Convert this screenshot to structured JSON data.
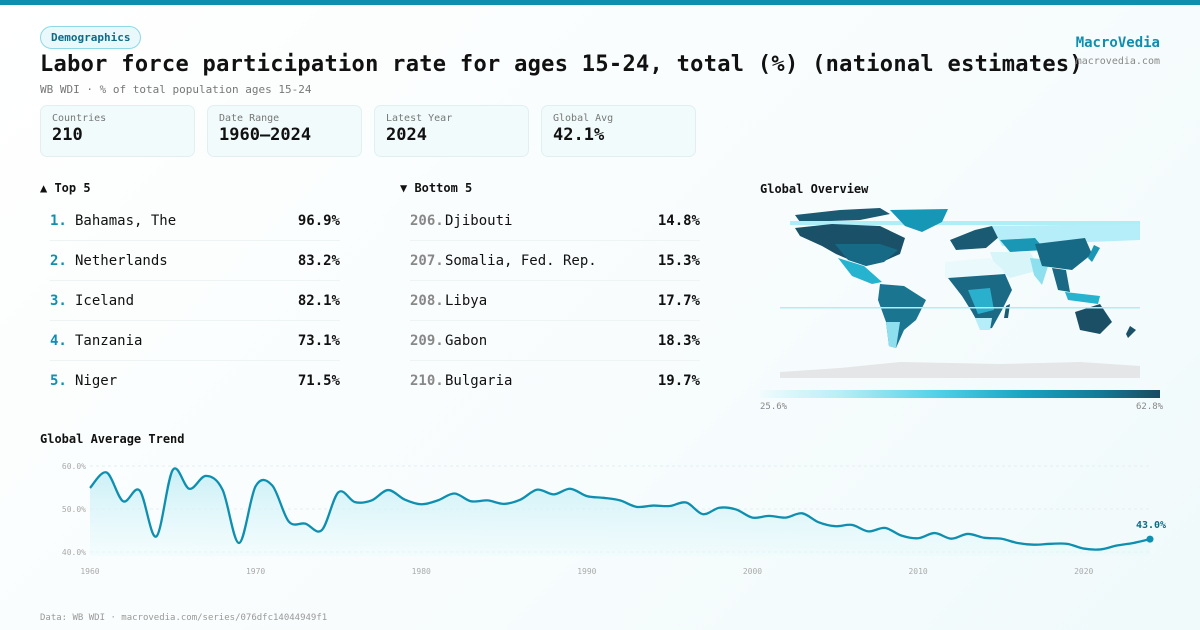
{
  "header": {
    "category": "Demographics",
    "title": "Labor force participation rate for ages 15-24, total (%) (national estimates)",
    "subtitle": "WB WDI · % of total population ages 15-24",
    "brand": "MacroVedia",
    "brand_url": "macrovedia.com"
  },
  "stats": [
    {
      "label": "Countries",
      "value": "210"
    },
    {
      "label": "Date Range",
      "value": "1960–2024"
    },
    {
      "label": "Latest Year",
      "value": "2024"
    },
    {
      "label": "Global Avg",
      "value": "42.1%"
    }
  ],
  "top": {
    "heading": "▲ Top 5",
    "items": [
      {
        "rank": "1.",
        "name": "Bahamas, The",
        "value": "96.9%"
      },
      {
        "rank": "2.",
        "name": "Netherlands",
        "value": "83.2%"
      },
      {
        "rank": "3.",
        "name": "Iceland",
        "value": "82.1%"
      },
      {
        "rank": "4.",
        "name": "Tanzania",
        "value": "73.1%"
      },
      {
        "rank": "5.",
        "name": "Niger",
        "value": "71.5%"
      }
    ]
  },
  "bottom": {
    "heading": "▼ Bottom 5",
    "items": [
      {
        "rank": "206.",
        "name": "Djibouti",
        "value": "14.8%"
      },
      {
        "rank": "207.",
        "name": "Somalia, Fed. Rep.",
        "value": "15.3%"
      },
      {
        "rank": "208.",
        "name": "Libya",
        "value": "17.7%"
      },
      {
        "rank": "209.",
        "name": "Gabon",
        "value": "18.3%"
      },
      {
        "rank": "210.",
        "name": "Bulgaria",
        "value": "19.7%"
      }
    ]
  },
  "map": {
    "heading": "Global Overview",
    "legend_min": "25.6%",
    "legend_max": "62.8%",
    "colors": {
      "low": "#f0fbfd",
      "high": "#1a4a5f",
      "no_data": "#e4e6e8"
    }
  },
  "chart_data": {
    "type": "area",
    "title": "Global Average Trend",
    "x": [
      1960,
      1961,
      1962,
      1963,
      1964,
      1965,
      1966,
      1967,
      1968,
      1969,
      1970,
      1971,
      1972,
      1973,
      1974,
      1975,
      1976,
      1977,
      1978,
      1979,
      1980,
      1981,
      1982,
      1983,
      1984,
      1985,
      1986,
      1987,
      1988,
      1989,
      1990,
      1991,
      1992,
      1993,
      1994,
      1995,
      1996,
      1997,
      1998,
      1999,
      2000,
      2001,
      2002,
      2003,
      2004,
      2005,
      2006,
      2007,
      2008,
      2009,
      2010,
      2011,
      2012,
      2013,
      2014,
      2015,
      2016,
      2017,
      2018,
      2019,
      2020,
      2021,
      2022,
      2023,
      2024
    ],
    "values": [
      54.9,
      58.5,
      51.8,
      54.3,
      43.6,
      59.1,
      54.7,
      57.7,
      54.5,
      42.1,
      55.3,
      55.5,
      47.1,
      46.6,
      45.1,
      53.9,
      51.6,
      52.0,
      54.4,
      52.2,
      51.1,
      52.0,
      53.6,
      51.8,
      52.0,
      51.2,
      52.2,
      54.5,
      53.4,
      54.7,
      53.0,
      52.6,
      52.0,
      50.5,
      50.8,
      50.7,
      51.5,
      48.8,
      50.3,
      49.9,
      48.0,
      48.4,
      48.0,
      49.0,
      46.9,
      46.0,
      46.3,
      44.8,
      45.6,
      43.8,
      43.2,
      44.4,
      43.1,
      44.2,
      43.3,
      43.1,
      42.1,
      41.7,
      41.9,
      41.9,
      40.8,
      40.6,
      41.5,
      42.1,
      43.0
    ],
    "ylim": [
      40,
      60
    ],
    "yticks": [
      "60.0%",
      "50.0%",
      "40.0%"
    ],
    "xticks": [
      "1960",
      "1970",
      "1980",
      "1990",
      "2000",
      "2010",
      "2020"
    ],
    "last_label": "43.0%",
    "grid": true,
    "color": "#0e8fb0"
  },
  "footer": "Data: WB WDI · macrovedia.com/series/076dfc14044949f1"
}
